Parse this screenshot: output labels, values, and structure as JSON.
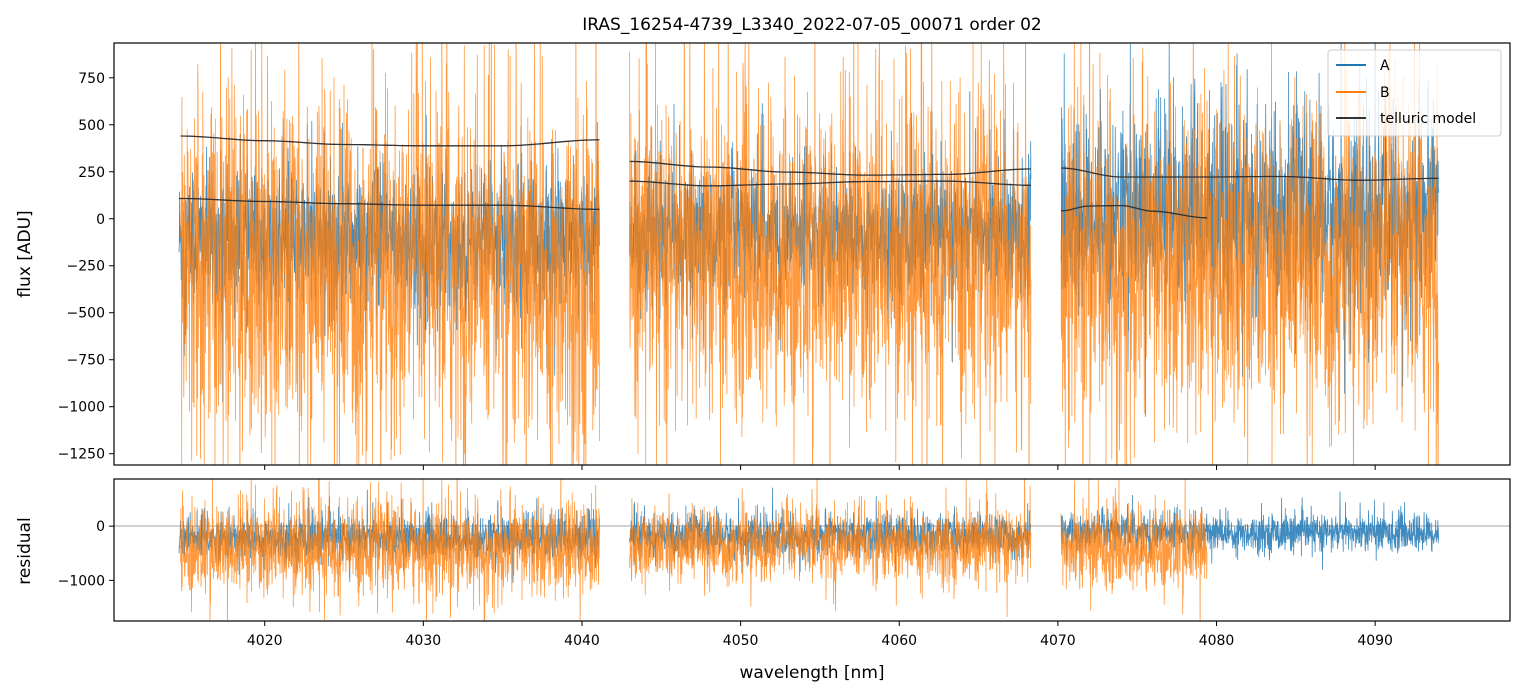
{
  "title": "IRAS_16254-4739_L3340_2022-07-05_00071  order 02",
  "colors": {
    "A": "#1f77b4",
    "B": "#ff7f0e",
    "model": "#333333",
    "zero_line": "#888888"
  },
  "legend": {
    "placement": "upper right",
    "entries": [
      "A",
      "B",
      "telluric model"
    ]
  },
  "chart_data": [
    {
      "type": "line",
      "panel": "top",
      "title": "IRAS_16254-4739_L3340_2022-07-05_00071  order 02",
      "xlabel": "",
      "ylabel": "flux [ADU]",
      "xlim": [
        4010.5,
        4098.5
      ],
      "ylim": [
        -1310,
        935
      ],
      "yticks": [
        -1250,
        -1000,
        -750,
        -500,
        -250,
        0,
        250,
        500,
        750
      ],
      "ytick_labels": [
        "−1250",
        "−1000",
        "−750",
        "−500",
        "−250",
        "0",
        "250",
        "500",
        "750"
      ],
      "grid": false,
      "series": [
        {
          "name": "A",
          "kind": "noisy",
          "segments": [
            {
              "x0": 4014.6,
              "x1": 4041.1,
              "center": -120,
              "sigma": 190
            },
            {
              "x0": 4043.0,
              "x1": 4068.3,
              "center": -80,
              "sigma": 170
            },
            {
              "x0": 4070.2,
              "x1": 4094.0,
              "center": 20,
              "sigma": 260
            }
          ]
        },
        {
          "name": "B",
          "kind": "noisy",
          "segments": [
            {
              "x0": 4014.7,
              "x1": 4041.1,
              "center": -280,
              "sigma": 480
            },
            {
              "x0": 4043.0,
              "x1": 4068.3,
              "center": -220,
              "sigma": 420
            },
            {
              "x0": 4070.2,
              "x1": 4094.0,
              "center": -240,
              "sigma": 420
            }
          ]
        },
        {
          "name": "telluric model A",
          "kind": "smooth",
          "curves": [
            {
              "x": [
                4014.6,
                4020,
                4025,
                4030,
                4035,
                4041.1
              ],
              "y": [
                108,
                92,
                80,
                72,
                72,
                50
              ]
            },
            {
              "x": [
                4043.0,
                4048,
                4053,
                4058,
                4063,
                4068.3
              ],
              "y": [
                305,
                275,
                248,
                232,
                236,
                265
              ]
            },
            {
              "x": [
                4070.2,
                4074,
                4079,
                4084,
                4089,
                4094.0
              ],
              "y": [
                270,
                222,
                222,
                225,
                205,
                215
              ]
            }
          ]
        },
        {
          "name": "telluric model B",
          "kind": "smooth",
          "curves": [
            {
              "x": [
                4014.7,
                4020,
                4025,
                4030,
                4035,
                4041.1
              ],
              "y": [
                440,
                415,
                395,
                388,
                388,
                420
              ]
            },
            {
              "x": [
                4043.0,
                4048,
                4053,
                4058,
                4063,
                4068.3
              ],
              "y": [
                200,
                175,
                185,
                198,
                200,
                178
              ]
            },
            {
              "x": [
                4070.2,
                4072,
                4074,
                4076,
                4079.4
              ],
              "y": [
                42,
                68,
                70,
                40,
                5
              ]
            }
          ]
        }
      ]
    },
    {
      "type": "line",
      "panel": "bottom",
      "xlabel": "wavelength [nm]",
      "ylabel": "residual",
      "xlim": [
        4010.5,
        4098.5
      ],
      "ylim": [
        -1750,
        870
      ],
      "xticks": [
        4020,
        4030,
        4040,
        4050,
        4060,
        4070,
        4080,
        4090
      ],
      "xtick_labels": [
        "4020",
        "4030",
        "4040",
        "4050",
        "4060",
        "4070",
        "4080",
        "4090"
      ],
      "yticks": [
        -1000,
        0
      ],
      "ytick_labels": [
        "−1000",
        "0"
      ],
      "hline": 0,
      "series": [
        {
          "name": "A",
          "kind": "noisy",
          "segments": [
            {
              "x0": 4014.6,
              "x1": 4041.1,
              "center": -220,
              "sigma": 200
            },
            {
              "x0": 4043.0,
              "x1": 4068.3,
              "center": -180,
              "sigma": 190
            },
            {
              "x0": 4070.2,
              "x1": 4094.0,
              "center": -120,
              "sigma": 170
            }
          ]
        },
        {
          "name": "B",
          "kind": "noisy",
          "segments": [
            {
              "x0": 4014.7,
              "x1": 4041.1,
              "center": -420,
              "sigma": 420
            },
            {
              "x0": 4043.0,
              "x1": 4068.3,
              "center": -350,
              "sigma": 330
            },
            {
              "x0": 4070.2,
              "x1": 4079.4,
              "center": -400,
              "sigma": 380
            }
          ]
        }
      ]
    }
  ]
}
